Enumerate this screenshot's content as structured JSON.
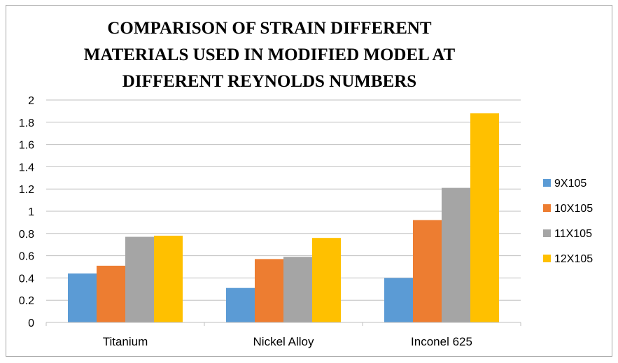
{
  "chart_data": {
    "type": "bar",
    "title_lines": [
      "COMPARISON OF STRAIN DIFFERENT",
      "MATERIALS USED IN MODIFIED MODEL AT",
      "DIFFERENT REYNOLDS NUMBERS"
    ],
    "categories": [
      "Titanium",
      "Nickel Alloy",
      "Inconel 625"
    ],
    "series": [
      {
        "name": "9X105",
        "color": "#5b9bd5",
        "values": [
          0.44,
          0.31,
          0.4
        ]
      },
      {
        "name": "10X105",
        "color": "#ed7d31",
        "values": [
          0.51,
          0.57,
          0.92
        ]
      },
      {
        "name": "11X105",
        "color": "#a5a5a5",
        "values": [
          0.77,
          0.59,
          1.21
        ]
      },
      {
        "name": "12X105",
        "color": "#ffc000",
        "values": [
          0.78,
          0.76,
          1.88
        ]
      }
    ],
    "ylim": [
      0,
      2
    ],
    "yticks": [
      "0",
      "0.2",
      "0.4",
      "0.6",
      "0.8",
      "1",
      "1.2",
      "1.4",
      "1.6",
      "1.8",
      "2"
    ],
    "xlabel": "",
    "ylabel": "",
    "grid": true,
    "legend_position": "right"
  }
}
